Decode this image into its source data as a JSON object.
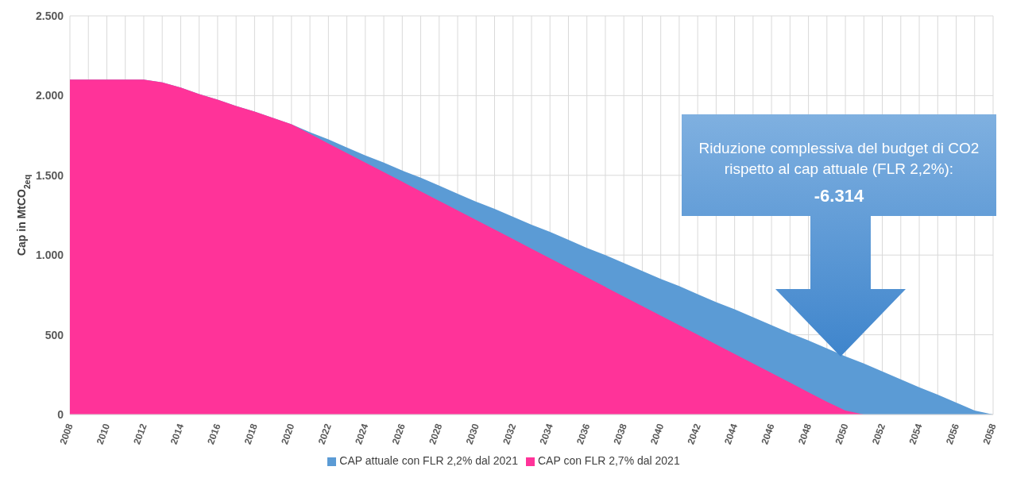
{
  "chart_data": {
    "type": "area",
    "ylabel": "Cap in MtCO$_{2eq}$",
    "x": [
      2008,
      2009,
      2010,
      2011,
      2012,
      2013,
      2014,
      2015,
      2016,
      2017,
      2018,
      2019,
      2020,
      2021,
      2022,
      2023,
      2024,
      2025,
      2026,
      2027,
      2028,
      2029,
      2030,
      2031,
      2032,
      2033,
      2034,
      2035,
      2036,
      2037,
      2038,
      2039,
      2040,
      2041,
      2042,
      2043,
      2044,
      2045,
      2046,
      2047,
      2048,
      2049,
      2050,
      2051,
      2052,
      2053,
      2054,
      2055,
      2056,
      2057,
      2058
    ],
    "series": [
      {
        "name": "CAP attuale con FLR 2,2% dal 2021",
        "color": "#5b9bd5",
        "values": [
          2100,
          2100,
          2100,
          2100,
          2100,
          2083,
          2050,
          2010,
          1975,
          1935,
          1900,
          1860,
          1820,
          1770,
          1725,
          1675,
          1625,
          1580,
          1530,
          1485,
          1435,
          1385,
          1335,
          1290,
          1240,
          1190,
          1145,
          1095,
          1045,
          1000,
          950,
          900,
          850,
          805,
          755,
          705,
          660,
          610,
          560,
          510,
          465,
          415,
          365,
          320,
          270,
          220,
          170,
          125,
          75,
          25,
          0
        ]
      },
      {
        "name": "CAP con FLR 2,7% dal 2021",
        "color": "#ff3399",
        "values": [
          2100,
          2100,
          2100,
          2100,
          2100,
          2083,
          2050,
          2010,
          1975,
          1935,
          1900,
          1860,
          1820,
          1760,
          1700,
          1640,
          1580,
          1520,
          1460,
          1400,
          1340,
          1280,
          1220,
          1160,
          1100,
          1040,
          980,
          920,
          860,
          800,
          740,
          680,
          620,
          560,
          500,
          440,
          380,
          320,
          260,
          200,
          140,
          80,
          25,
          0,
          null,
          null,
          null,
          null,
          null,
          null,
          null
        ]
      }
    ],
    "xlim": [
      2008,
      2058
    ],
    "xticks": [
      2008,
      {
        "value": 2009,
        "label": null
      },
      2010,
      {
        "value": 2011,
        "label": null
      },
      2012,
      {
        "value": 2013,
        "label": null
      },
      2014,
      {
        "value": 2015,
        "label": null
      },
      2016,
      {
        "value": 2017,
        "label": null
      },
      2018,
      {
        "value": 2019,
        "label": null
      },
      2020,
      {
        "value": 2021,
        "label": null
      },
      2022,
      {
        "value": 2023,
        "label": null
      },
      2024,
      {
        "value": 2025,
        "label": null
      },
      2026,
      {
        "value": 2027,
        "label": null
      },
      2028,
      {
        "value": 2029,
        "label": null
      },
      2030,
      {
        "value": 2031,
        "label": null
      },
      2032,
      {
        "value": 2033,
        "label": null
      },
      2034,
      {
        "value": 2035,
        "label": null
      },
      2036,
      {
        "value": 2037,
        "label": null
      },
      2038,
      {
        "value": 2039,
        "label": null
      },
      2040,
      {
        "value": 2041,
        "label": null
      },
      2042,
      {
        "value": 2043,
        "label": null
      },
      2044,
      {
        "value": 2045,
        "label": null
      },
      2046,
      {
        "value": 2047,
        "label": null
      },
      2048,
      {
        "value": 2049,
        "label": null
      },
      2050,
      {
        "value": 2051,
        "label": null
      },
      2052,
      {
        "value": 2053,
        "label": null
      },
      2054,
      {
        "value": 2055,
        "label": null
      },
      2056,
      {
        "value": 2057,
        "label": null
      },
      2058
    ],
    "ylim": [
      0,
      2500
    ],
    "yticks": [
      0,
      {
        "value": 500,
        "label": "500"
      },
      {
        "value": 1000,
        "label": "1.000"
      },
      {
        "value": 1500,
        "label": "1.500"
      },
      {
        "value": 2000,
        "label": "2.000"
      },
      {
        "value": 2500,
        "label": "2.500"
      }
    ],
    "grid": true,
    "legend": "bottom",
    "annotations": [
      "Riduzione complessiva del budget di CO2 rispetto al cap attuale (FLR 2,2%):",
      "-6.314"
    ]
  }
}
